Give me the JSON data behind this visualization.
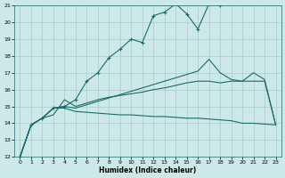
{
  "xlabel": "Humidex (Indice chaleur)",
  "bg_color": "#cce8e8",
  "grid_color": "#aacccc",
  "line_color": "#1a6b6b",
  "xlim": [
    -0.5,
    23.5
  ],
  "ylim": [
    12,
    21
  ],
  "xticks": [
    0,
    1,
    2,
    3,
    4,
    5,
    6,
    7,
    8,
    9,
    10,
    11,
    12,
    13,
    14,
    15,
    16,
    17,
    18,
    19,
    20,
    21,
    22,
    23
  ],
  "yticks": [
    12,
    13,
    14,
    15,
    16,
    17,
    18,
    19,
    20,
    21
  ],
  "series": [
    {
      "x": [
        0,
        1,
        2,
        3,
        4,
        5,
        6,
        7,
        8,
        9,
        10,
        11,
        12,
        13,
        14,
        15,
        16,
        17,
        18
      ],
      "y": [
        12.0,
        13.9,
        14.3,
        14.9,
        15.0,
        15.4,
        16.5,
        17.0,
        17.9,
        18.4,
        19.0,
        18.8,
        20.4,
        20.6,
        21.1,
        20.5,
        19.6,
        21.1,
        21.0
      ],
      "marker": true
    },
    {
      "x": [
        0,
        1,
        2,
        3,
        4,
        5,
        6,
        7,
        8,
        9,
        10,
        11,
        12,
        13,
        14,
        15,
        16,
        17,
        18,
        19,
        20,
        21,
        22,
        23
      ],
      "y": [
        12.0,
        13.9,
        14.3,
        14.9,
        15.0,
        14.9,
        15.1,
        15.3,
        15.5,
        15.7,
        15.9,
        16.1,
        16.3,
        16.5,
        16.7,
        16.9,
        17.1,
        17.8,
        17.0,
        16.6,
        16.5,
        17.0,
        16.6,
        13.9
      ],
      "marker": false
    },
    {
      "x": [
        0,
        1,
        2,
        3,
        4,
        5,
        6,
        7,
        8,
        9,
        10,
        11,
        12,
        13,
        14,
        15,
        16,
        17,
        18,
        19,
        20,
        21,
        22,
        23
      ],
      "y": [
        12.0,
        13.9,
        14.3,
        14.9,
        14.9,
        14.7,
        14.65,
        14.6,
        14.55,
        14.5,
        14.5,
        14.45,
        14.4,
        14.4,
        14.35,
        14.3,
        14.3,
        14.25,
        14.2,
        14.15,
        14.0,
        14.0,
        13.95,
        13.9
      ],
      "marker": false
    },
    {
      "x": [
        0,
        1,
        2,
        3,
        4,
        5,
        6,
        7,
        8,
        9,
        10,
        11,
        12,
        13,
        14,
        15,
        16,
        17,
        18,
        19,
        20,
        21,
        22,
        23
      ],
      "y": [
        12.0,
        13.9,
        14.3,
        14.5,
        15.4,
        15.0,
        15.2,
        15.4,
        15.55,
        15.65,
        15.75,
        15.85,
        16.0,
        16.1,
        16.25,
        16.4,
        16.5,
        16.5,
        16.4,
        16.5,
        16.5,
        16.5,
        16.5,
        13.9
      ],
      "marker": false
    }
  ]
}
